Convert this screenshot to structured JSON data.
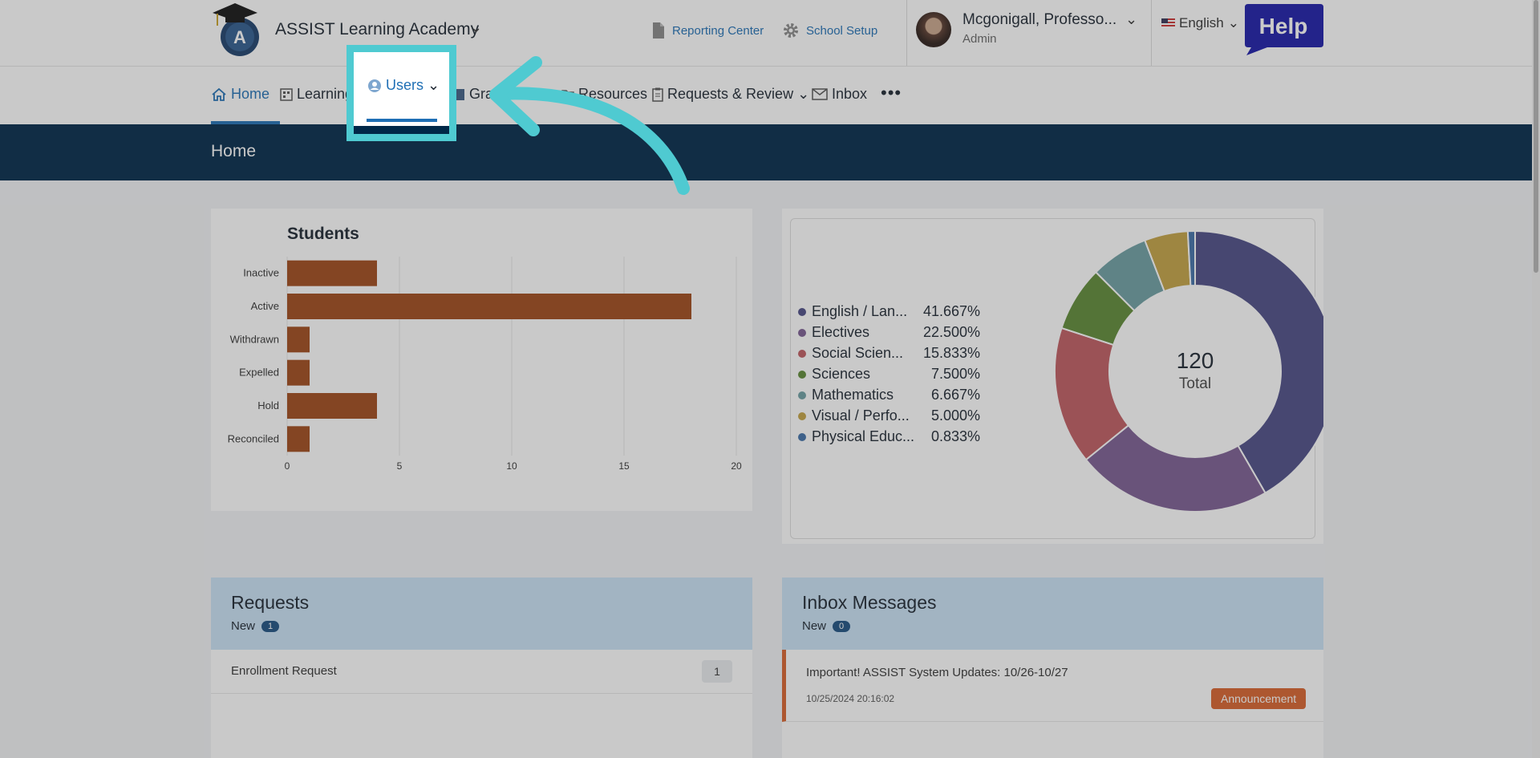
{
  "header": {
    "school_name": "ASSIST Learning Academy",
    "reporting_center": "Reporting Center",
    "school_setup": "School Setup",
    "user_name": "Mcgonigall, Professo...",
    "user_role": "Admin",
    "language": "English",
    "help_label": "Help"
  },
  "nav": {
    "items": [
      {
        "label": "Home"
      },
      {
        "label": "Learning"
      },
      {
        "label": "Users"
      },
      {
        "label": "Gra"
      },
      {
        "label": "Resources"
      },
      {
        "label": "Requests & Review"
      },
      {
        "label": "Inbox"
      }
    ],
    "more": "•••"
  },
  "page_title": "Home",
  "chart_data": [
    {
      "type": "bar",
      "orientation": "horizontal",
      "title": "Students",
      "categories": [
        "Inactive",
        "Active",
        "Withdrawn",
        "Expelled",
        "Hold",
        "Reconciled"
      ],
      "values": [
        4,
        18,
        1,
        1,
        4,
        1
      ],
      "xlim": [
        0,
        20
      ],
      "xticks": [
        "0",
        "5",
        "10",
        "15",
        "20"
      ],
      "color": "#a0491a",
      "grid": true
    },
    {
      "type": "pie",
      "variant": "donut",
      "center_value": "120",
      "center_label": "Total",
      "legend_position": "left",
      "slices": [
        {
          "label": "English / Lan...",
          "pct_label": "41.667%",
          "value": 41.667,
          "color": "#4b4c86"
        },
        {
          "label": "Electives",
          "pct_label": "22.500%",
          "value": 22.5,
          "color": "#7b5c92"
        },
        {
          "label": "Social Scien...",
          "pct_label": "15.833%",
          "value": 15.833,
          "color": "#bf5a60"
        },
        {
          "label": "Sciences",
          "pct_label": "7.500%",
          "value": 7.5,
          "color": "#5e8a35"
        },
        {
          "label": "Mathematics",
          "pct_label": "6.667%",
          "value": 6.667,
          "color": "#6d9fa3"
        },
        {
          "label": "Visual / Perfo...",
          "pct_label": "5.000%",
          "value": 5.0,
          "color": "#c4a243"
        },
        {
          "label": "Physical Educ...",
          "pct_label": "0.833%",
          "value": 0.833,
          "color": "#3f6fa8"
        }
      ]
    }
  ],
  "requests": {
    "title": "Requests",
    "new_label": "New",
    "new_count": "1",
    "rows": [
      {
        "label": "Enrollment Request",
        "count": "1"
      }
    ]
  },
  "inbox": {
    "title": "Inbox Messages",
    "new_label": "New",
    "new_count": "0",
    "messages": [
      {
        "subject": "Important! ASSIST System Updates: 10/26-10/27",
        "date": "10/25/2024 20:16:02",
        "tag": "Announcement"
      }
    ]
  }
}
